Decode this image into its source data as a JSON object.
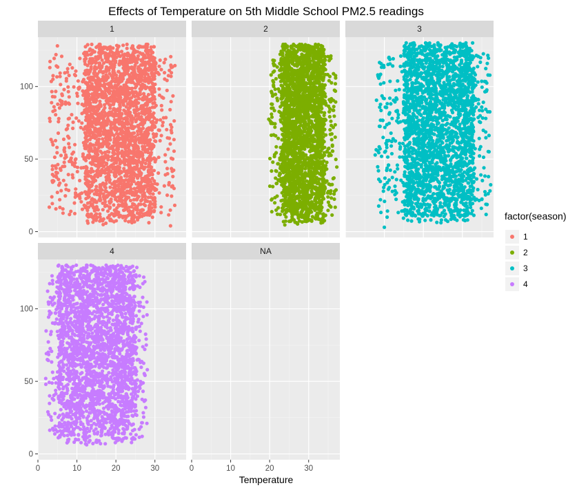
{
  "chart_data": {
    "type": "scatter",
    "title": "Effects of Temperature on 5th Middle School PM2.5 readings",
    "xlabel": "Temperature",
    "ylabel": "",
    "xlim": [
      0,
      38
    ],
    "ylim": [
      -4,
      134
    ],
    "x_ticks": [
      0,
      10,
      20,
      30
    ],
    "y_ticks": [
      0,
      50,
      100
    ],
    "grid": true,
    "facets": [
      "1",
      "2",
      "3",
      "4",
      "NA"
    ],
    "legend": {
      "title": "factor(season)",
      "placement": "right",
      "entries": [
        {
          "label": "1",
          "color": "#F8766D"
        },
        {
          "label": "2",
          "color": "#7CAE00"
        },
        {
          "label": "3",
          "color": "#00BFC4"
        },
        {
          "label": "4",
          "color": "#C77CFF"
        }
      ]
    },
    "series": [
      {
        "facet": "1",
        "color": "#F8766D",
        "x_range": [
          3,
          35
        ],
        "x_core": [
          12,
          30
        ],
        "y_range": [
          2,
          129
        ],
        "note_points": [
          [
            5,
            128
          ],
          [
            3,
            78
          ],
          [
            5,
            27
          ],
          [
            34,
            4
          ]
        ]
      },
      {
        "facet": "2",
        "color": "#7CAE00",
        "x_range": [
          20,
          37
        ],
        "x_core": [
          23,
          34
        ],
        "y_range": [
          2,
          129
        ],
        "note_points": [
          [
            21,
            103
          ],
          [
            22,
            12
          ]
        ]
      },
      {
        "facet": "3",
        "color": "#00BFC4",
        "x_range": [
          8,
          37
        ],
        "x_core": [
          15,
          33
        ],
        "y_range": [
          3,
          130
        ],
        "note_points": [
          [
            10,
            3
          ],
          [
            9,
            22
          ],
          [
            36,
            78
          ]
        ]
      },
      {
        "facet": "4",
        "color": "#C77CFF",
        "x_range": [
          2,
          28
        ],
        "x_core": [
          5,
          25
        ],
        "y_range": [
          3,
          130
        ],
        "note_points": [
          [
            2,
            52
          ],
          [
            3,
            40
          ]
        ]
      },
      {
        "facet": "NA",
        "color": "#999999",
        "x_range": [],
        "x_core": [],
        "y_range": [],
        "note_points": []
      }
    ]
  }
}
